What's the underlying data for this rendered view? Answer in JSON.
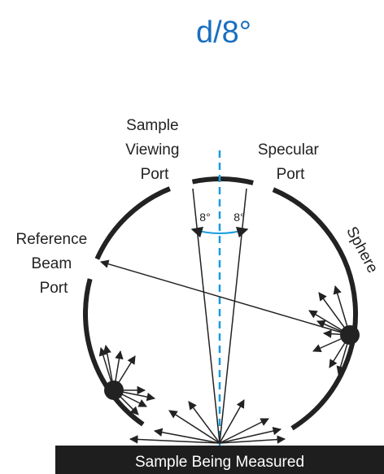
{
  "title": "d/8°",
  "labels": {
    "sample_viewing_port": [
      "Sample",
      "Viewing",
      "Port"
    ],
    "specular_port": [
      "Specular",
      "Port"
    ],
    "reference_beam_port": [
      "Reference",
      "Beam",
      "Port"
    ],
    "sphere": "Sphere",
    "angle_left": "8°",
    "angle_right": "8°",
    "sample": "Sample Being Measured"
  }
}
